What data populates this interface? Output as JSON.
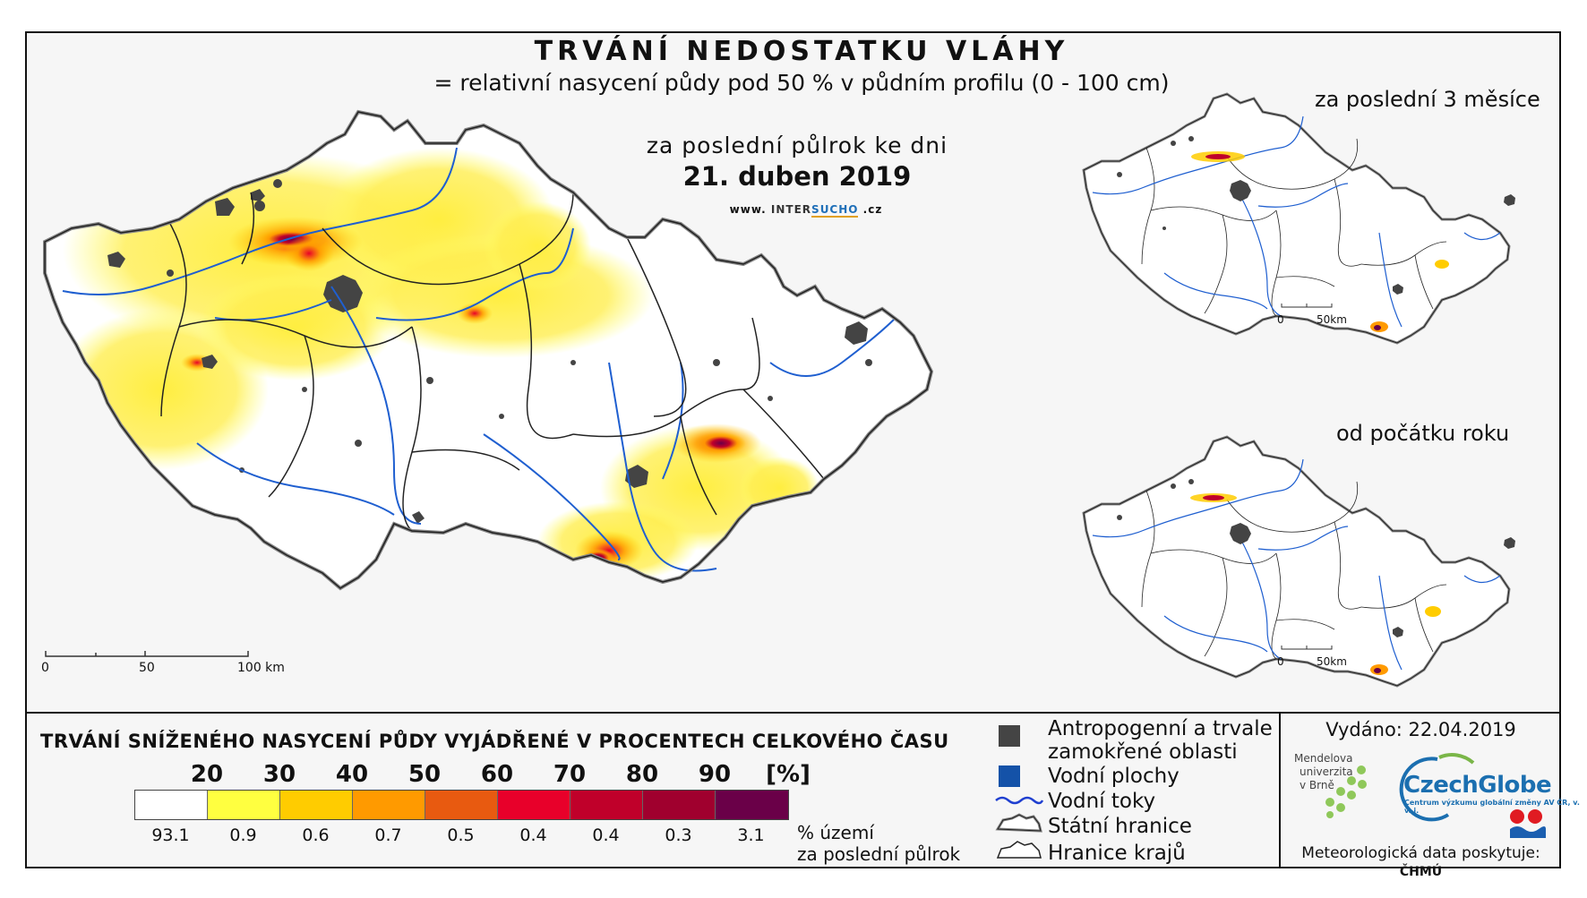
{
  "title": "TRVÁNÍ NEDOSTATKU VLÁHY",
  "subtitle": "= relativní nasycení půdy pod 50 % v půdním profilu (0 - 100 cm)",
  "main_map": {
    "period": "za poslední půlrok ke dni",
    "date": "21. duben 2019",
    "website_prefix": "www. ",
    "website_inter": "INTER",
    "website_sucho": "SUCHO",
    "website_suffix": " .cz",
    "scale": [
      "0",
      "50",
      "100 km"
    ]
  },
  "inset_top": {
    "label": "za poslední 3 měsíce",
    "scale": [
      "0",
      "50km"
    ]
  },
  "inset_bottom": {
    "label": "od počátku roku",
    "scale": [
      "0",
      "50km"
    ]
  },
  "legend": {
    "title": "TRVÁNÍ SNÍŽENÉHO NASYCENÍ PŮDY VYJÁDŘENÉ V PROCENTECH CELKOVÉHO ČASU",
    "thresholds": [
      "20",
      "30",
      "40",
      "50",
      "60",
      "70",
      "80",
      "90",
      "[%]"
    ],
    "classes": [
      {
        "color": "#ffffff",
        "share": "93.1"
      },
      {
        "color": "#ffff40",
        "share": "0.9"
      },
      {
        "color": "#ffcc00",
        "share": "0.6"
      },
      {
        "color": "#ff9a00",
        "share": "0.7"
      },
      {
        "color": "#e85a10",
        "share": "0.5"
      },
      {
        "color": "#e8002a",
        "share": "0.4"
      },
      {
        "color": "#c0002a",
        "share": "0.4"
      },
      {
        "color": "#a0002e",
        "share": "0.3"
      },
      {
        "color": "#6a0048",
        "share": "3.1"
      }
    ],
    "unit_line1": "% území",
    "unit_line2": "za poslední půlrok"
  },
  "symbols": {
    "anthropogenic_line1": "Antropogenní a trvale",
    "anthropogenic_line2": "zamokřené oblasti",
    "water_bodies": "Vodní plochy",
    "rivers": "Vodní toky",
    "state_border": "Státní hranice",
    "region_border": "Hranice krajů",
    "anthropogenic_color": "#444444",
    "water_color": "#1452a8",
    "river_color": "#1f3fd0"
  },
  "issued": "Vydáno: 22.04.2019",
  "mendel_text": [
    "Mendelova",
    "univerzita",
    "v Brně"
  ],
  "czechglobe": "CzechGlobe",
  "czechglobe_sub": "Centrum výzkumu globální změny AV ČR, v. v. i.",
  "meteo_prefix": "Meteorologická data poskytuje: ",
  "meteo_source": "ČHMÚ"
}
